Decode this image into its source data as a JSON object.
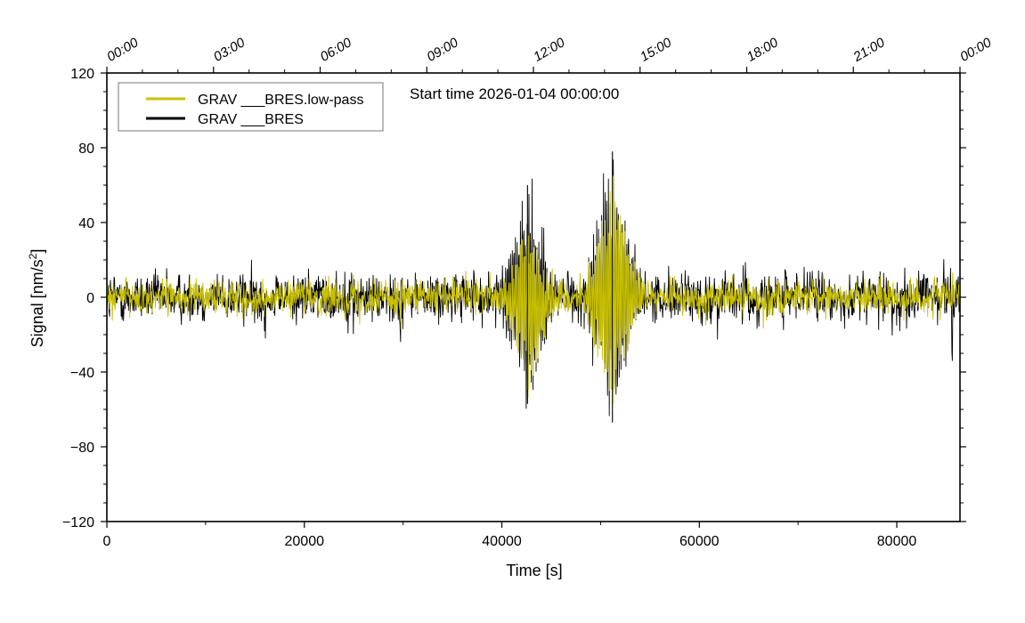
{
  "chart_data": {
    "type": "line",
    "title": "Start time 2026-01-04 00:00:00",
    "xlabel": "Time [s]",
    "ylabel_main": "Signal [nm/s",
    "ylabel_sup": "2",
    "ylabel_end": "]",
    "xlim": [
      0,
      86400
    ],
    "ylim": [
      -120,
      120
    ],
    "x_ticks": [
      {
        "value": 0,
        "label": "0"
      },
      {
        "value": 20000,
        "label": "20000"
      },
      {
        "value": 40000,
        "label": "40000"
      },
      {
        "value": 60000,
        "label": "60000"
      },
      {
        "value": 80000,
        "label": "80000"
      }
    ],
    "y_ticks": [
      {
        "value": 120,
        "label": "120"
      },
      {
        "value": 80,
        "label": "80"
      },
      {
        "value": 40,
        "label": "40"
      },
      {
        "value": 0,
        "label": "0"
      },
      {
        "value": -40,
        "label": "−40"
      },
      {
        "value": -80,
        "label": "−80"
      },
      {
        "value": -120,
        "label": "−120"
      }
    ],
    "top_time_ticks": [
      {
        "value": 0,
        "label": "00:00"
      },
      {
        "value": 10800,
        "label": "03:00"
      },
      {
        "value": 21600,
        "label": "06:00"
      },
      {
        "value": 32400,
        "label": "09:00"
      },
      {
        "value": 43200,
        "label": "12:00"
      },
      {
        "value": 54000,
        "label": "15:00"
      },
      {
        "value": 64800,
        "label": "18:00"
      },
      {
        "value": 75600,
        "label": "21:00"
      },
      {
        "value": 86400,
        "label": "00:00"
      }
    ],
    "legend": {
      "position": "top-left",
      "entries": [
        {
          "label": "GRAV ___BRES.low-pass",
          "color": "#c8c000"
        },
        {
          "label": "GRAV ___BRES",
          "color": "#000000"
        }
      ]
    },
    "series": [
      {
        "name": "GRAV ___BRES",
        "color": "#000000",
        "description": "raw signal, noise envelope about ±15 nm/s², bursts near 42500 s and 51000 s",
        "baseline_amplitude": 12,
        "events": [
          {
            "t": 42600,
            "max": 60,
            "min": -57
          },
          {
            "t": 51200,
            "max": 78,
            "min": -67
          }
        ]
      },
      {
        "name": "GRAV ___BRES.low-pass",
        "color": "#c8c000",
        "description": "low-pass filtered signal, envelope about ±10 nm/s²",
        "baseline_amplitude": 8,
        "events": [
          {
            "t": 42600,
            "max": 33,
            "min": -49
          },
          {
            "t": 51200,
            "max": 65,
            "min": -57
          }
        ]
      }
    ]
  }
}
